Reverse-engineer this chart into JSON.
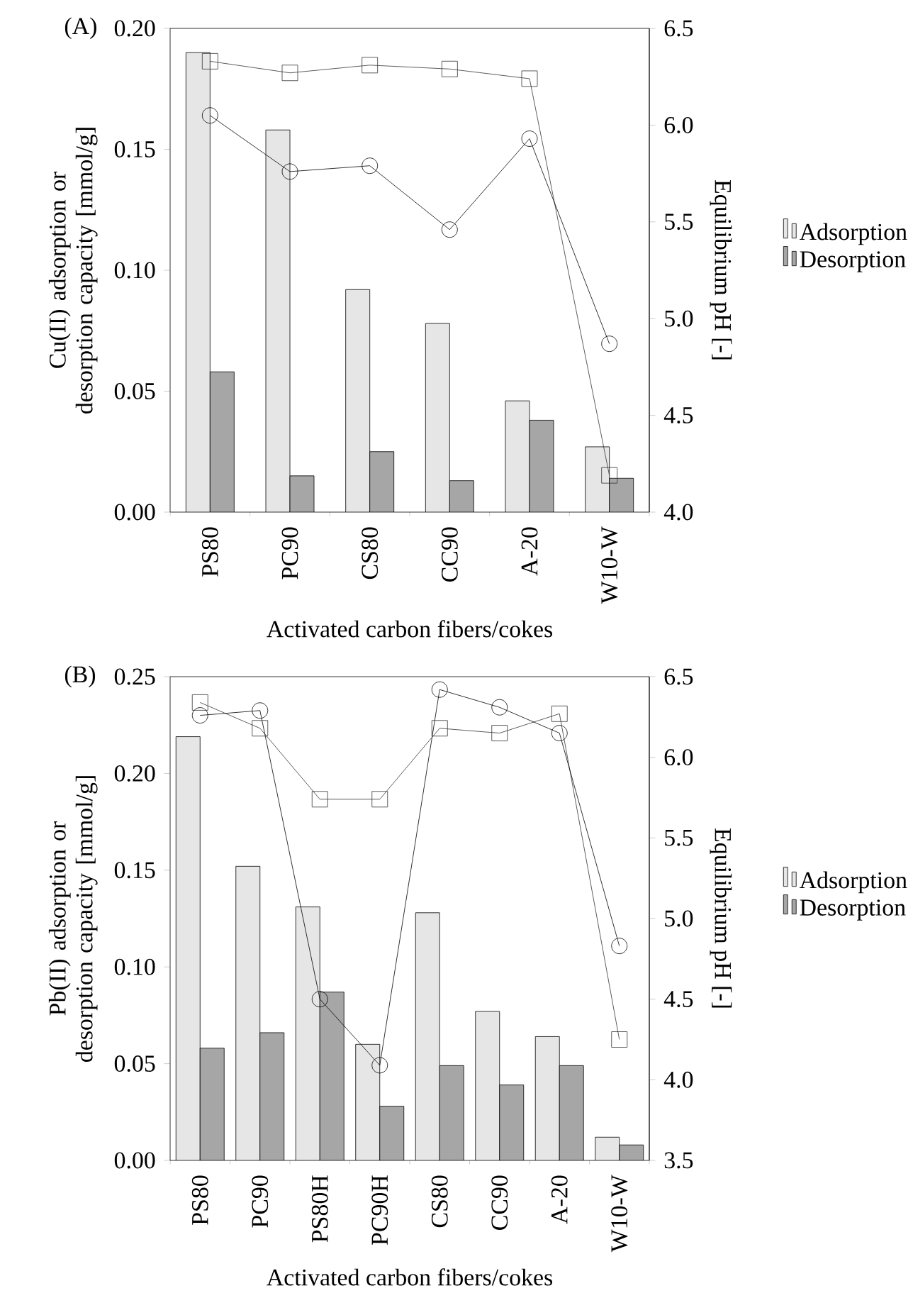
{
  "chart_data": [
    {
      "type": "bar",
      "annotations": [
        "(A)"
      ],
      "xlabel": "Activated carbon fibers/cokes",
      "ylabel": "Cu(II) adsorption or desorption capacity [mmol/g]",
      "y2label": "Equilibrium pH [-]",
      "categories": [
        "PS80",
        "PC90",
        "CS80",
        "CC90",
        "A-20",
        "W10-W"
      ],
      "series": [
        {
          "name": "Adsorption",
          "color": "#e6e6e6",
          "values": [
            0.19,
            0.158,
            0.092,
            0.078,
            0.046,
            0.027
          ]
        },
        {
          "name": "Desorption",
          "color": "#a6a6a6",
          "values": [
            0.058,
            0.015,
            0.025,
            0.013,
            0.038,
            0.014
          ]
        },
        {
          "type": "line",
          "axis": "y2",
          "marker": "square",
          "color": "#333333",
          "values": [
            6.33,
            6.27,
            6.31,
            6.29,
            6.24,
            4.19
          ]
        },
        {
          "type": "line",
          "axis": "y2",
          "marker": "circle",
          "color": "#000000",
          "values": [
            6.05,
            5.76,
            5.79,
            5.46,
            5.93,
            4.87
          ]
        }
      ],
      "ylim": [
        0,
        0.2
      ],
      "yticks": [
        {
          "value": 0,
          "label": "0.00"
        },
        {
          "value": 0.05,
          "label": "0.05"
        },
        {
          "value": 0.1,
          "label": "0.10"
        },
        {
          "value": 0.15,
          "label": "0.15"
        },
        {
          "value": 0.2,
          "label": "0.20"
        }
      ],
      "y2lim": [
        4.0,
        6.5
      ],
      "y2ticks": [
        {
          "value": 4,
          "label": "4.0"
        },
        {
          "value": 4.5,
          "label": "4.5"
        },
        {
          "value": 5,
          "label": "5.0"
        },
        {
          "value": 5.5,
          "label": "5.5"
        },
        {
          "value": 6,
          "label": "6.0"
        },
        {
          "value": 6.5,
          "label": "6.5"
        }
      ],
      "legend": "right"
    },
    {
      "type": "bar",
      "annotations": [
        "(B)"
      ],
      "xlabel": "Activated carbon fibers/cokes",
      "ylabel": "Pb(II) adsorption or desorption capacity [mmol/g]",
      "y2label": "Equilibrium pH [-]",
      "categories": [
        "PS80",
        "PC90",
        "PS80H",
        "PC90H",
        "CS80",
        "CC90",
        "A-20",
        "W10-W"
      ],
      "series": [
        {
          "name": "Adsorption",
          "color": "#e6e6e6",
          "values": [
            0.219,
            0.152,
            0.131,
            0.06,
            0.128,
            0.077,
            0.064,
            0.012
          ]
        },
        {
          "name": "Desorption",
          "color": "#a6a6a6",
          "values": [
            0.058,
            0.066,
            0.087,
            0.028,
            0.049,
            0.039,
            0.049,
            0.008
          ]
        },
        {
          "type": "line",
          "axis": "y2",
          "marker": "square",
          "color": "#333333",
          "values": [
            6.34,
            6.18,
            5.74,
            5.74,
            6.18,
            6.15,
            6.27,
            4.25
          ]
        },
        {
          "type": "line",
          "axis": "y2",
          "marker": "circle",
          "color": "#000000",
          "values": [
            6.26,
            6.29,
            4.5,
            4.09,
            6.42,
            6.31,
            6.15,
            4.83
          ]
        }
      ],
      "ylim": [
        0,
        0.25
      ],
      "yticks": [
        {
          "value": 0,
          "label": "0.00"
        },
        {
          "value": 0.05,
          "label": "0.05"
        },
        {
          "value": 0.1,
          "label": "0.10"
        },
        {
          "value": 0.15,
          "label": "0.15"
        },
        {
          "value": 0.2,
          "label": "0.20"
        },
        {
          "value": 0.25,
          "label": "0.25"
        }
      ],
      "y2lim": [
        3.5,
        6.5
      ],
      "y2ticks": [
        {
          "value": 3.5,
          "label": "3.5"
        },
        {
          "value": 4,
          "label": "4.0"
        },
        {
          "value": 4.5,
          "label": "4.5"
        },
        {
          "value": 5,
          "label": "5.0"
        },
        {
          "value": 5.5,
          "label": "5.5"
        },
        {
          "value": 6,
          "label": "6.0"
        },
        {
          "value": 6.5,
          "label": "6.5"
        }
      ],
      "legend": "right"
    }
  ]
}
